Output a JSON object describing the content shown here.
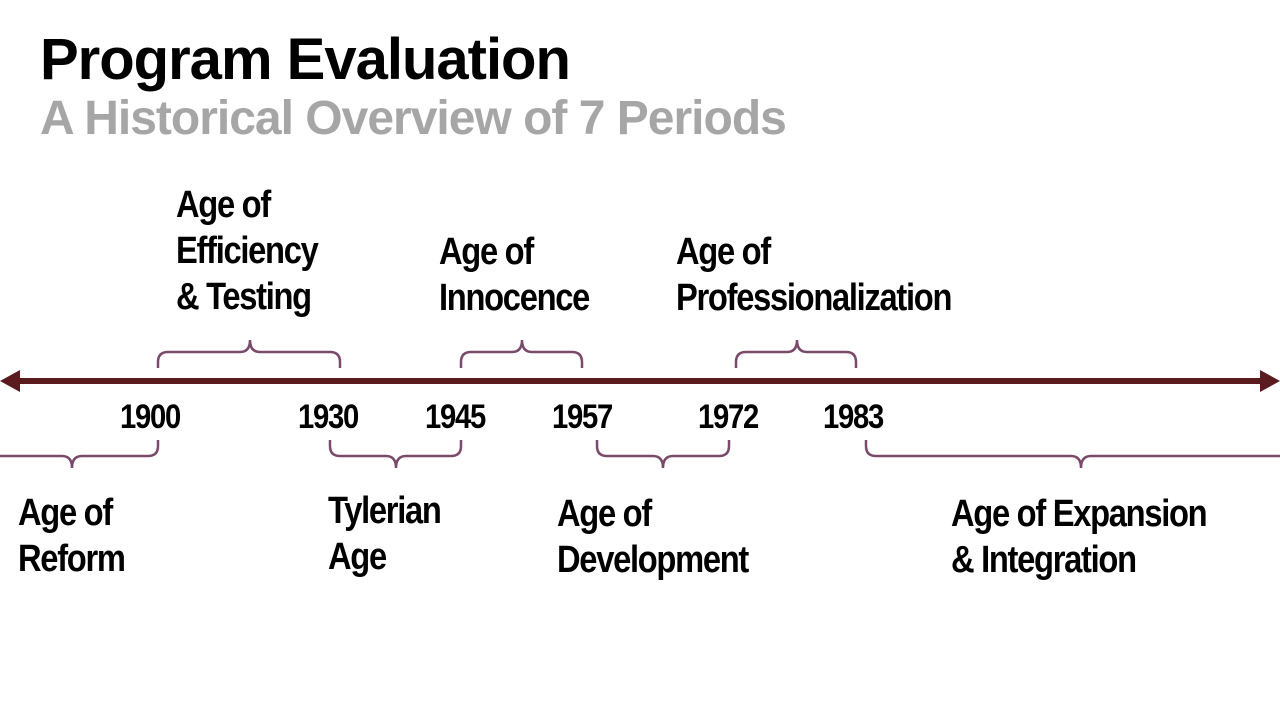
{
  "title": "Program Evaluation",
  "subtitle": "A Historical Overview of 7 Periods",
  "colors": {
    "axis": "#5a1a1e",
    "brace": "#7a4a6a",
    "subtitle": "#a6a6a6"
  },
  "years": [
    "1900",
    "1930",
    "1945",
    "1957",
    "1972",
    "1983"
  ],
  "periods": [
    {
      "line1": "Age of",
      "line2": "Reform"
    },
    {
      "line1": "Age of",
      "line2": "Efficiency",
      "line3": "& Testing"
    },
    {
      "line1": "Tylerian",
      "line2": "Age"
    },
    {
      "line1": "Age of",
      "line2": "Innocence"
    },
    {
      "line1": "Age of",
      "line2": "Development"
    },
    {
      "line1": "Age of",
      "line2": "Professionalization"
    },
    {
      "line1": "Age of Expansion",
      "line2": "& Integration"
    }
  ]
}
